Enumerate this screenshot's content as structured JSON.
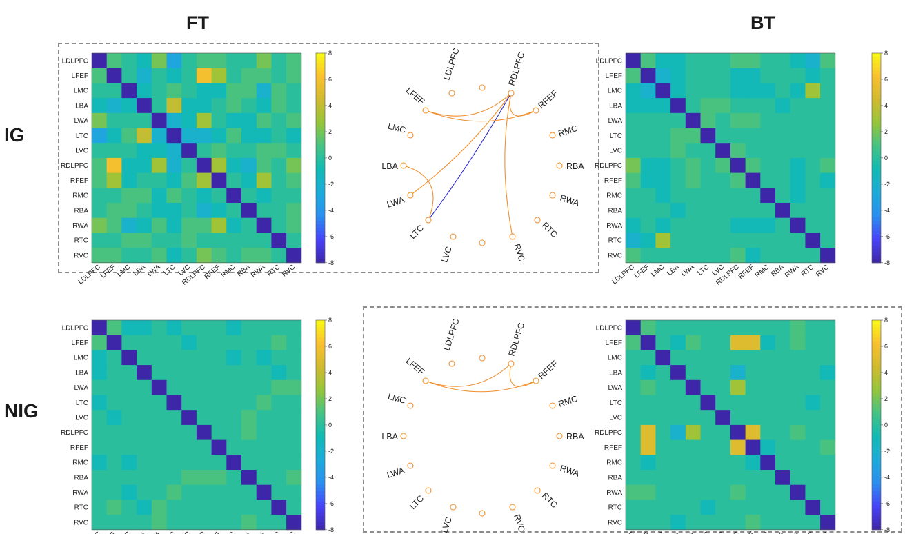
{
  "titles": {
    "left": "FT",
    "right": "BT"
  },
  "rows": {
    "top": "IG",
    "bottom": "NIG"
  },
  "colors": {
    "parula": [
      "#3e26a8",
      "#4743f8",
      "#2a8ef0",
      "#1dabda",
      "#11bab4",
      "#44c285",
      "#96c53a",
      "#d0ba2f",
      "#fac12f",
      "#f9fb15"
    ],
    "edge_positive": "#f0902d",
    "edge_negative": "#2b2bcf",
    "node": "#f0902d",
    "dash": "#8c8c8c"
  },
  "chart_data": [
    {
      "type": "heatmap",
      "name_panel": "FT-IG",
      "labels": [
        "LDLPFC",
        "LFEF",
        "LMC",
        "LBA",
        "LWA",
        "LTC",
        "LVC",
        "RDLPFC",
        "RFEF",
        "RMC",
        "RBA",
        "RWA",
        "RTC",
        "RVC"
      ],
      "colorbar": {
        "ticks": [
          "8",
          "6",
          "4",
          "2",
          "0",
          "-2",
          "-4",
          "-6",
          "-8"
        ],
        "range": [
          -8,
          8
        ]
      },
      "values": [
        [
          -8,
          1,
          0,
          -1,
          2,
          -3,
          0,
          1,
          1,
          0,
          0,
          2,
          0,
          1
        ],
        [
          1,
          -8,
          0,
          -2,
          0,
          -1,
          0,
          6,
          3,
          0,
          1,
          1,
          0,
          1
        ],
        [
          0,
          0,
          -8,
          -1,
          0,
          1,
          0,
          -1,
          -1,
          1,
          1,
          -2,
          1,
          0
        ],
        [
          -1,
          -2,
          -1,
          -8,
          0,
          4,
          -1,
          -1,
          0,
          1,
          0,
          -1,
          1,
          0
        ],
        [
          2,
          0,
          0,
          0,
          -8,
          -2,
          -1,
          3,
          0,
          -1,
          -1,
          1,
          0,
          1
        ],
        [
          -3,
          -1,
          1,
          4,
          -2,
          -8,
          -2,
          -2,
          -1,
          1,
          -1,
          -1,
          0,
          -1
        ],
        [
          0,
          0,
          0,
          -1,
          -1,
          -2,
          -8,
          0,
          1,
          0,
          0,
          1,
          1,
          0
        ],
        [
          1,
          6,
          -1,
          -1,
          3,
          -2,
          0,
          -8,
          3,
          -1,
          -2,
          1,
          0,
          2
        ],
        [
          1,
          3,
          -1,
          0,
          0,
          -1,
          1,
          3,
          -8,
          0,
          -1,
          3,
          0,
          1
        ],
        [
          0,
          0,
          1,
          1,
          -1,
          1,
          0,
          -1,
          0,
          -8,
          0,
          -1,
          0,
          0
        ],
        [
          0,
          1,
          1,
          0,
          -1,
          -1,
          0,
          -2,
          -1,
          0,
          -8,
          0,
          0,
          1
        ],
        [
          2,
          1,
          -2,
          -1,
          1,
          -1,
          1,
          1,
          3,
          -1,
          0,
          -8,
          0,
          1
        ],
        [
          0,
          0,
          1,
          1,
          0,
          0,
          1,
          0,
          0,
          0,
          0,
          0,
          -8,
          0
        ],
        [
          1,
          1,
          0,
          0,
          1,
          -1,
          0,
          2,
          1,
          0,
          1,
          1,
          0,
          -8
        ]
      ]
    },
    {
      "type": "network",
      "name_panel": "IG-network",
      "nodes": [
        "LDLPFC",
        "LFEF",
        "LMC",
        "LBA",
        "LWA",
        "LTC",
        "LVC",
        "RDLPFC",
        "RFEF",
        "RMC",
        "RBA",
        "RWA",
        "RTC",
        "RVC"
      ],
      "edges": [
        {
          "from": "RDLPFC",
          "to": "LFEF",
          "sign": "positive"
        },
        {
          "from": "RDLPFC",
          "to": "RFEF",
          "sign": "positive"
        },
        {
          "from": "RDLPFC",
          "to": "LWA",
          "sign": "positive"
        },
        {
          "from": "RDLPFC",
          "to": "LTC",
          "sign": "negative"
        },
        {
          "from": "RDLPFC",
          "to": "RVC",
          "sign": "positive"
        },
        {
          "from": "LFEF",
          "to": "RFEF",
          "sign": "positive"
        },
        {
          "from": "LBA",
          "to": "LTC",
          "sign": "positive"
        }
      ]
    },
    {
      "type": "heatmap",
      "name_panel": "BT-IG",
      "labels": [
        "LDLPFC",
        "LFEF",
        "LMC",
        "LBA",
        "LWA",
        "LTC",
        "LVC",
        "RDLPFC",
        "RFEF",
        "RMC",
        "RBA",
        "RWA",
        "RTC",
        "RVC"
      ],
      "colorbar": {
        "ticks": [
          "8",
          "6",
          "4",
          "2",
          "0",
          "-2",
          "-4",
          "-6",
          "-8"
        ],
        "range": [
          -8,
          8
        ]
      },
      "values": [
        [
          -8,
          1,
          -1,
          -1,
          0,
          0,
          0,
          1,
          1,
          0,
          0,
          -1,
          -2,
          1
        ],
        [
          1,
          -8,
          -2,
          -1,
          0,
          0,
          0,
          -1,
          -1,
          0,
          0,
          0,
          -1,
          0
        ],
        [
          -1,
          -2,
          -8,
          -1,
          0,
          0,
          0,
          -1,
          -1,
          -1,
          0,
          -1,
          3,
          0
        ],
        [
          -1,
          -1,
          -1,
          -8,
          0,
          1,
          1,
          0,
          0,
          0,
          -1,
          0,
          0,
          0
        ],
        [
          0,
          0,
          0,
          0,
          -8,
          1,
          0,
          1,
          1,
          0,
          0,
          0,
          0,
          0
        ],
        [
          0,
          0,
          0,
          1,
          1,
          -8,
          0,
          0,
          0,
          0,
          0,
          0,
          0,
          0
        ],
        [
          0,
          0,
          0,
          1,
          0,
          0,
          -8,
          1,
          0,
          0,
          0,
          0,
          0,
          0
        ],
        [
          2,
          -1,
          -1,
          0,
          1,
          0,
          1,
          -8,
          1,
          0,
          0,
          -1,
          0,
          1
        ],
        [
          1,
          -1,
          -1,
          0,
          1,
          0,
          0,
          1,
          -8,
          0,
          0,
          -1,
          0,
          -1
        ],
        [
          0,
          0,
          -1,
          0,
          0,
          0,
          0,
          0,
          0,
          -8,
          0,
          -1,
          0,
          0
        ],
        [
          0,
          0,
          0,
          -1,
          0,
          0,
          0,
          0,
          0,
          0,
          -8,
          0,
          0,
          0
        ],
        [
          -1,
          0,
          -1,
          0,
          0,
          0,
          0,
          -1,
          -1,
          -1,
          0,
          -8,
          0,
          0
        ],
        [
          -2,
          -1,
          3,
          0,
          0,
          0,
          0,
          0,
          0,
          0,
          0,
          0,
          -8,
          0
        ],
        [
          1,
          0,
          0,
          0,
          0,
          0,
          0,
          1,
          -1,
          0,
          0,
          0,
          0,
          -8
        ]
      ]
    },
    {
      "type": "heatmap",
      "name_panel": "FT-NIG",
      "labels": [
        "LDLPFC",
        "LFEF",
        "LMC",
        "LBA",
        "LWA",
        "LTC",
        "LVC",
        "RDLPFC",
        "RFEF",
        "RMC",
        "RBA",
        "RWA",
        "RTC",
        "RVC"
      ],
      "colorbar": {
        "ticks": [
          "8",
          "6",
          "4",
          "2",
          "0",
          "-2",
          "-4",
          "-6",
          "-8"
        ],
        "range": [
          -8,
          8
        ]
      },
      "values": [
        [
          -8,
          1,
          -1,
          -1,
          0,
          -1,
          0,
          0,
          0,
          -1,
          0,
          0,
          0,
          0
        ],
        [
          1,
          -8,
          0,
          0,
          0,
          0,
          -1,
          0,
          0,
          0,
          0,
          0,
          1,
          0
        ],
        [
          -1,
          0,
          -8,
          0,
          0,
          0,
          0,
          0,
          0,
          -1,
          0,
          -1,
          0,
          0
        ],
        [
          -1,
          0,
          0,
          -8,
          0,
          0,
          0,
          0,
          0,
          0,
          0,
          0,
          -1,
          0
        ],
        [
          0,
          0,
          0,
          0,
          -8,
          0,
          0,
          0,
          0,
          0,
          0,
          0,
          1,
          1
        ],
        [
          -1,
          0,
          0,
          0,
          0,
          -8,
          0,
          0,
          0,
          0,
          0,
          1,
          0,
          0
        ],
        [
          0,
          -1,
          0,
          0,
          0,
          0,
          -8,
          0,
          0,
          0,
          1,
          0,
          0,
          0
        ],
        [
          0,
          0,
          0,
          0,
          0,
          0,
          0,
          -8,
          0,
          0,
          1,
          0,
          0,
          0
        ],
        [
          0,
          0,
          0,
          0,
          0,
          0,
          0,
          0,
          -8,
          0,
          0,
          0,
          0,
          0
        ],
        [
          -1,
          0,
          -1,
          0,
          0,
          0,
          0,
          0,
          0,
          -8,
          0,
          0,
          0,
          0
        ],
        [
          0,
          0,
          0,
          0,
          0,
          0,
          1,
          1,
          1,
          0,
          -8,
          0,
          0,
          1
        ],
        [
          0,
          0,
          -1,
          0,
          0,
          1,
          0,
          0,
          0,
          0,
          0,
          -8,
          0,
          0
        ],
        [
          0,
          1,
          0,
          -1,
          1,
          0,
          0,
          0,
          0,
          0,
          0,
          0,
          -8,
          0
        ],
        [
          0,
          0,
          0,
          0,
          1,
          0,
          0,
          0,
          0,
          0,
          1,
          0,
          0,
          -8
        ]
      ]
    },
    {
      "type": "network",
      "name_panel": "NIG-network",
      "nodes": [
        "LDLPFC",
        "LFEF",
        "LMC",
        "LBA",
        "LWA",
        "LTC",
        "LVC",
        "RDLPFC",
        "RFEF",
        "RMC",
        "RBA",
        "RWA",
        "RTC",
        "RVC"
      ],
      "edges": [
        {
          "from": "LFEF",
          "to": "RDLPFC",
          "sign": "positive"
        },
        {
          "from": "LFEF",
          "to": "RFEF",
          "sign": "positive"
        },
        {
          "from": "RDLPFC",
          "to": "RFEF",
          "sign": "positive"
        }
      ]
    },
    {
      "type": "heatmap",
      "name_panel": "BT-NIG",
      "labels": [
        "LDLPFC",
        "LFEF",
        "LMC",
        "LBA",
        "LWA",
        "LTC",
        "LVC",
        "RDLPFC",
        "RFEF",
        "RMC",
        "RBA",
        "RWA",
        "RTC",
        "RVC"
      ],
      "colorbar": {
        "ticks": [
          "8",
          "6",
          "4",
          "2",
          "0",
          "-2",
          "-4",
          "-6",
          "-8"
        ],
        "range": [
          -8,
          8
        ]
      },
      "values": [
        [
          -8,
          1,
          0,
          0,
          0,
          0,
          0,
          0,
          0,
          0,
          0,
          1,
          0,
          0
        ],
        [
          1,
          -8,
          0,
          -1,
          1,
          0,
          0,
          5,
          5,
          -1,
          0,
          1,
          0,
          0
        ],
        [
          0,
          0,
          -8,
          0,
          0,
          0,
          0,
          0,
          0,
          0,
          0,
          0,
          0,
          0
        ],
        [
          0,
          -1,
          0,
          -8,
          0,
          0,
          0,
          -2,
          0,
          0,
          0,
          0,
          0,
          -1
        ],
        [
          0,
          1,
          0,
          0,
          -8,
          0,
          0,
          3,
          0,
          0,
          0,
          0,
          0,
          0
        ],
        [
          0,
          0,
          0,
          0,
          0,
          -8,
          0,
          0,
          0,
          0,
          0,
          0,
          -1,
          0
        ],
        [
          0,
          0,
          0,
          0,
          0,
          0,
          -8,
          0,
          0,
          0,
          0,
          0,
          0,
          0
        ],
        [
          0,
          5,
          0,
          -2,
          3,
          0,
          0,
          -8,
          5,
          0,
          0,
          1,
          0,
          0
        ],
        [
          0,
          5,
          0,
          0,
          0,
          0,
          0,
          5,
          -8,
          -1,
          0,
          0,
          0,
          1
        ],
        [
          0,
          -1,
          0,
          0,
          0,
          0,
          0,
          0,
          -1,
          -8,
          0,
          0,
          0,
          0
        ],
        [
          0,
          0,
          0,
          0,
          0,
          0,
          0,
          0,
          0,
          0,
          -8,
          0,
          0,
          0
        ],
        [
          1,
          1,
          0,
          0,
          0,
          0,
          0,
          1,
          0,
          0,
          0,
          -8,
          0,
          0
        ],
        [
          0,
          0,
          0,
          0,
          0,
          -1,
          0,
          0,
          0,
          0,
          0,
          0,
          -8,
          0
        ],
        [
          0,
          0,
          0,
          -1,
          0,
          0,
          0,
          0,
          1,
          0,
          0,
          0,
          0,
          -8
        ]
      ]
    }
  ]
}
